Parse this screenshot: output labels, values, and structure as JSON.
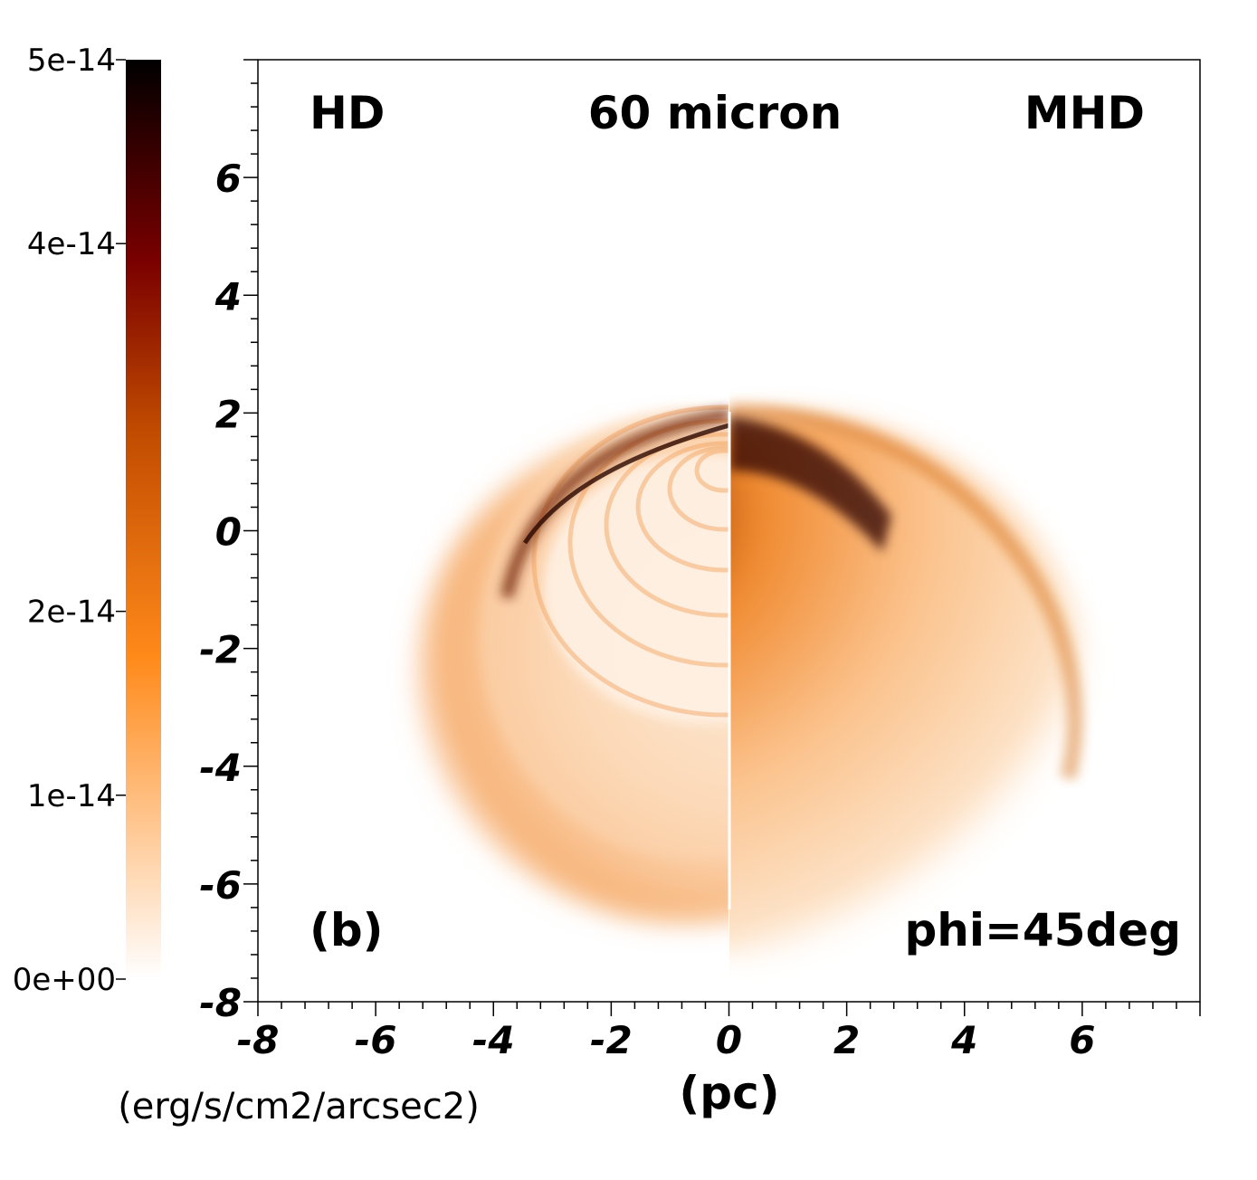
{
  "chart_data": {
    "type": "heatmap",
    "title": "60 micron",
    "xlabel": "(pc)",
    "ylabel": "",
    "xlim": [
      -8,
      8
    ],
    "ylim": [
      -8,
      8
    ],
    "x_ticks": [
      "-8",
      "-6",
      "-4",
      "-2",
      "0",
      "2",
      "4",
      "6"
    ],
    "y_ticks": [
      "-8",
      "-6",
      "-4",
      "-2",
      "0",
      "2",
      "4",
      "6"
    ],
    "x_tick_values": [
      -8,
      -6,
      -4,
      -2,
      0,
      2,
      4,
      6
    ],
    "y_tick_values": [
      -8,
      -6,
      -4,
      -2,
      0,
      2,
      4,
      6
    ],
    "annotations": {
      "left_panel": "HD",
      "right_panel": "MHD",
      "panel_id": "(b)",
      "angle": "phi=45deg"
    },
    "colorbar": {
      "range": [
        0,
        5e-14
      ],
      "ticks": [
        "0e+00",
        "1e-14",
        "2e-14",
        "4e-14",
        "5e-14"
      ],
      "tick_values": [
        0,
        1e-14,
        2e-14,
        4e-14,
        5e-14
      ],
      "unit": "(erg/s/cm2/arcsec2)",
      "colormap": [
        "#ffffff",
        "#ff8a1a",
        "#c04a00",
        "#7a0000",
        "#000000"
      ]
    },
    "grid": false,
    "colors": {
      "peak": "#000000",
      "high": "#7a0000",
      "mid": "#c04a00",
      "low": "#ff8a1a",
      "zero": "#ffffff"
    }
  }
}
